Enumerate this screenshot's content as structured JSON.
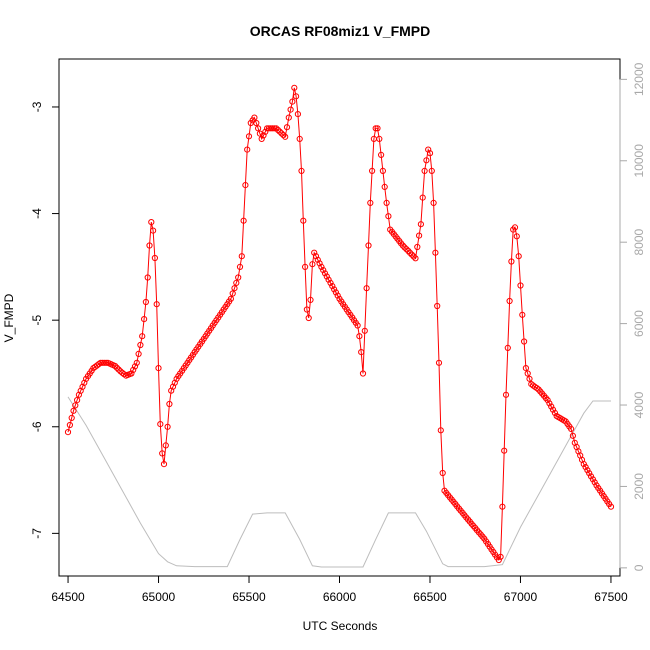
{
  "chart_data": {
    "type": "scatter",
    "title": "ORCAS RF08miz1 V_FMPD",
    "xlabel": "UTC Seconds",
    "ylabel": "V_FMPD",
    "xlim": [
      64450,
      67550
    ],
    "ylim": [
      -7.4,
      -2.55
    ],
    "x_ticks": [
      64500,
      65000,
      65500,
      66000,
      66500,
      67000,
      67500
    ],
    "y_ticks": [
      -7,
      -6,
      -5,
      -4,
      -3
    ],
    "right_axis": {
      "ylim": [
        -200,
        12500
      ],
      "ticks": [
        0,
        2000,
        4000,
        6000,
        8000,
        10000,
        12000
      ],
      "color": "#a8a8a8"
    },
    "colors": {
      "series": "#ff0000",
      "secondary": "#bdbdbd",
      "axis": "#000000"
    },
    "grid": false,
    "series": [
      {
        "style": "points-and-line",
        "color": "#ff0000",
        "anchors": [
          [
            64500,
            -6.05
          ],
          [
            64530,
            -5.85
          ],
          [
            64560,
            -5.7
          ],
          [
            64600,
            -5.55
          ],
          [
            64640,
            -5.45
          ],
          [
            64680,
            -5.4
          ],
          [
            64720,
            -5.4
          ],
          [
            64760,
            -5.43
          ],
          [
            64790,
            -5.48
          ],
          [
            64820,
            -5.52
          ],
          [
            64850,
            -5.5
          ],
          [
            64880,
            -5.4
          ],
          [
            64910,
            -5.15
          ],
          [
            64935,
            -4.75
          ],
          [
            64950,
            -4.3
          ],
          [
            64960,
            -4.08
          ],
          [
            64975,
            -4.2
          ],
          [
            64990,
            -4.85
          ],
          [
            65005,
            -5.75
          ],
          [
            65015,
            -6.2
          ],
          [
            65030,
            -6.35
          ],
          [
            65050,
            -6.0
          ],
          [
            65065,
            -5.68
          ],
          [
            65100,
            -5.55
          ],
          [
            65200,
            -5.3
          ],
          [
            65300,
            -5.05
          ],
          [
            65400,
            -4.8
          ],
          [
            65440,
            -4.6
          ],
          [
            65460,
            -4.4
          ],
          [
            65475,
            -3.9
          ],
          [
            65490,
            -3.4
          ],
          [
            65510,
            -3.15
          ],
          [
            65530,
            -3.1
          ],
          [
            65550,
            -3.2
          ],
          [
            65570,
            -3.3
          ],
          [
            65600,
            -3.2
          ],
          [
            65650,
            -3.2
          ],
          [
            65700,
            -3.28
          ],
          [
            65720,
            -3.1
          ],
          [
            65740,
            -2.95
          ],
          [
            65750,
            -2.82
          ],
          [
            65760,
            -2.9
          ],
          [
            65775,
            -3.15
          ],
          [
            65790,
            -3.6
          ],
          [
            65805,
            -4.3
          ],
          [
            65820,
            -4.9
          ],
          [
            65835,
            -5.02
          ],
          [
            65845,
            -4.6
          ],
          [
            65855,
            -4.35
          ],
          [
            65900,
            -4.5
          ],
          [
            66000,
            -4.8
          ],
          [
            66100,
            -5.05
          ],
          [
            66115,
            -5.2
          ],
          [
            66130,
            -5.5
          ],
          [
            66150,
            -4.7
          ],
          [
            66170,
            -3.9
          ],
          [
            66190,
            -3.3
          ],
          [
            66205,
            -3.15
          ],
          [
            66220,
            -3.3
          ],
          [
            66240,
            -3.6
          ],
          [
            66260,
            -3.9
          ],
          [
            66280,
            -4.15
          ],
          [
            66350,
            -4.3
          ],
          [
            66420,
            -4.42
          ],
          [
            66450,
            -4.1
          ],
          [
            66470,
            -3.6
          ],
          [
            66490,
            -3.4
          ],
          [
            66505,
            -3.45
          ],
          [
            66520,
            -3.9
          ],
          [
            66535,
            -4.6
          ],
          [
            66550,
            -5.4
          ],
          [
            66565,
            -6.35
          ],
          [
            66580,
            -6.6
          ],
          [
            66700,
            -6.85
          ],
          [
            66800,
            -7.05
          ],
          [
            66880,
            -7.25
          ],
          [
            66890,
            -7.22
          ],
          [
            66900,
            -6.75
          ],
          [
            66920,
            -5.7
          ],
          [
            66945,
            -4.6
          ],
          [
            66960,
            -4.15
          ],
          [
            66975,
            -4.12
          ],
          [
            66990,
            -4.4
          ],
          [
            67010,
            -4.95
          ],
          [
            67030,
            -5.45
          ],
          [
            67060,
            -5.6
          ],
          [
            67100,
            -5.65
          ],
          [
            67150,
            -5.75
          ],
          [
            67200,
            -5.9
          ],
          [
            67250,
            -5.95
          ],
          [
            67280,
            -6.02
          ],
          [
            67300,
            -6.15
          ],
          [
            67350,
            -6.35
          ],
          [
            67420,
            -6.55
          ],
          [
            67480,
            -6.7
          ],
          [
            67500,
            -6.75
          ]
        ]
      },
      {
        "style": "line",
        "color": "#bdbdbd",
        "axis": "right",
        "anchors": [
          [
            64500,
            4200
          ],
          [
            64600,
            3500
          ],
          [
            64700,
            2700
          ],
          [
            64800,
            1900
          ],
          [
            64900,
            1100
          ],
          [
            65000,
            350
          ],
          [
            65050,
            150
          ],
          [
            65100,
            50
          ],
          [
            65200,
            30
          ],
          [
            65300,
            30
          ],
          [
            65380,
            30
          ],
          [
            65450,
            700
          ],
          [
            65520,
            1320
          ],
          [
            65600,
            1350
          ],
          [
            65700,
            1350
          ],
          [
            65780,
            700
          ],
          [
            65850,
            50
          ],
          [
            65900,
            20
          ],
          [
            66000,
            20
          ],
          [
            66100,
            20
          ],
          [
            66130,
            20
          ],
          [
            66200,
            700
          ],
          [
            66270,
            1350
          ],
          [
            66350,
            1350
          ],
          [
            66420,
            1350
          ],
          [
            66480,
            900
          ],
          [
            66570,
            100
          ],
          [
            66600,
            30
          ],
          [
            66700,
            30
          ],
          [
            66800,
            30
          ],
          [
            66900,
            80
          ],
          [
            67000,
            1000
          ],
          [
            67100,
            1800
          ],
          [
            67200,
            2600
          ],
          [
            67300,
            3400
          ],
          [
            67350,
            3800
          ],
          [
            67400,
            4100
          ],
          [
            67500,
            4100
          ]
        ]
      }
    ]
  }
}
